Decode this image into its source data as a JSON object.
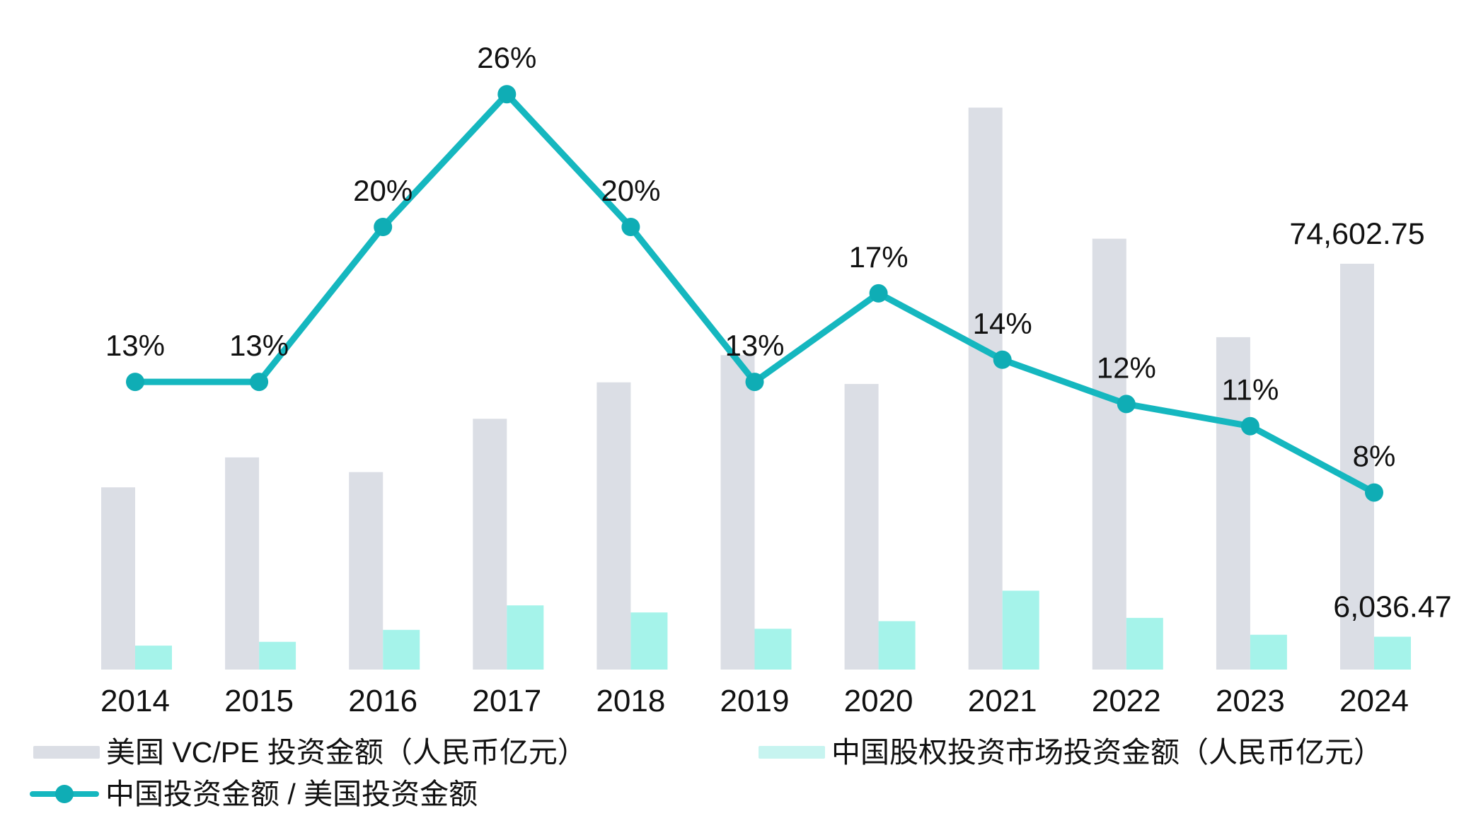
{
  "chart_data": {
    "type": "combo",
    "title": "",
    "categories": [
      "2014",
      "2015",
      "2016",
      "2017",
      "2018",
      "2019",
      "2020",
      "2021",
      "2022",
      "2023",
      "2024"
    ],
    "series": [
      {
        "name": "美国 VC/PE 投资金额（人民币亿元）",
        "type": "bar",
        "role": "us_bar",
        "values": [
          33500,
          39000,
          36300,
          46100,
          52800,
          57800,
          52500,
          103300,
          79200,
          61100,
          74602.75
        ],
        "end_label": "74,602.75",
        "end_label_category": "2024"
      },
      {
        "name": "中国股权投资市场投资金额（人民币亿元）",
        "type": "bar",
        "role": "cn_bar",
        "values": [
          4400,
          5100,
          7300,
          11800,
          10500,
          7500,
          8900,
          14500,
          9500,
          6400,
          6036.47
        ],
        "end_label": "6,036.47",
        "end_label_category": "2024"
      },
      {
        "name": "中国投资金额 / 美国投资金额",
        "type": "line",
        "role": "ratio_line",
        "values_percent": [
          13,
          13,
          20,
          26,
          20,
          13,
          17,
          14,
          12,
          11,
          8
        ],
        "point_labels": [
          "13%",
          "13%",
          "20%",
          "26%",
          "20%",
          "13%",
          "17%",
          "14%",
          "12%",
          "11%",
          "8%"
        ]
      }
    ],
    "value_axis_range": [
      0,
      123000
    ],
    "percent_axis_range": [
      0,
      30
    ],
    "grid": false,
    "axes_visible": false,
    "legend_position": "bottom"
  },
  "legend": {
    "items": [
      {
        "label": "美国 VC/PE 投资金额（人民币亿元）",
        "swatch": "bar",
        "color": "#dbdee5"
      },
      {
        "label": "中国股权投资市场投资金额（人民币亿元）",
        "swatch": "bar",
        "color": "#c7f4f0"
      },
      {
        "label": "中国投资金额 / 美国投资金额",
        "swatch": "line-marker",
        "color": "#15b7bf"
      }
    ]
  },
  "colors": {
    "us_bar": "#dbdee5",
    "cn_bar": "#a5f3ea",
    "cn_legend_swatch": "#c7f4f0",
    "line": "#15b7bf",
    "marker": "#0fadb5",
    "text": "#111111",
    "background": "#ffffff"
  }
}
